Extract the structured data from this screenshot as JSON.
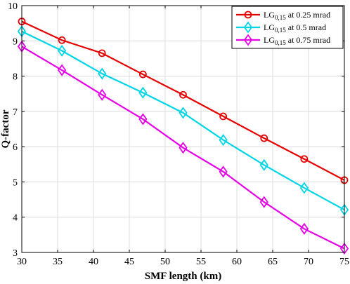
{
  "chart_data": {
    "type": "line",
    "xlabel": "SMF length (km)",
    "ylabel": "Q-factor",
    "xlim": [
      30,
      75
    ],
    "ylim": [
      3,
      10
    ],
    "xticks": [
      30,
      35,
      40,
      45,
      50,
      55,
      60,
      65,
      70,
      75
    ],
    "yticks": [
      3,
      4,
      5,
      6,
      7,
      8,
      9,
      10
    ],
    "grid": true,
    "legend_position": "top-right",
    "x": [
      30,
      35.6,
      41.2,
      46.9,
      52.5,
      58.1,
      63.8,
      69.4,
      75
    ],
    "series": [
      {
        "name_main": "LG",
        "name_sub": "0,15",
        "name_rest": " at 0.25 mrad",
        "color": "#e60000",
        "marker": "circle",
        "values": [
          9.55,
          9.02,
          8.65,
          8.05,
          7.47,
          6.86,
          6.24,
          5.65,
          5.05
        ]
      },
      {
        "name_main": "LG",
        "name_sub": "0,15",
        "name_rest": " at 0.5 mrad",
        "color": "#00d5e6",
        "marker": "diamond",
        "values": [
          9.27,
          8.72,
          8.07,
          7.53,
          6.96,
          6.19,
          5.48,
          4.83,
          4.21
        ]
      },
      {
        "name_main": "LG",
        "name_sub": "0,15",
        "name_rest": " at 0.75 mrad",
        "color": "#e600e6",
        "marker": "diamond",
        "values": [
          8.84,
          8.17,
          7.47,
          6.78,
          5.97,
          5.29,
          4.43,
          3.67,
          3.11
        ]
      }
    ]
  }
}
